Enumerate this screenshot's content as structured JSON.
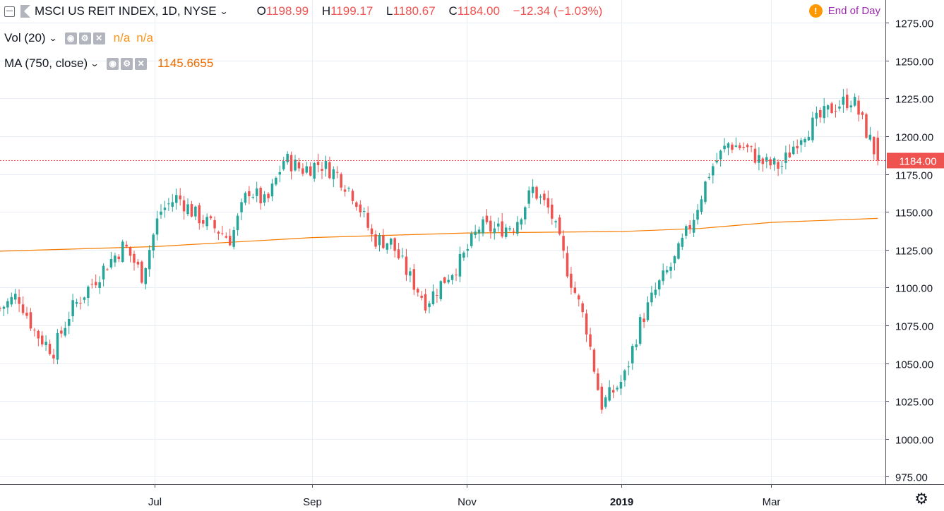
{
  "header": {
    "symbol": "MSCI US REIT INDEX, 1D, NYSE",
    "ohlc": {
      "o_label": "O",
      "o": "1198.99",
      "h_label": "H",
      "h": "1199.17",
      "l_label": "L",
      "l": "1180.67",
      "c_label": "C",
      "c": "1184.00",
      "change": "−12.34 (−1.03%)"
    },
    "end_of_day": "End of Day"
  },
  "indicators": {
    "vol": {
      "label": "Vol (20)",
      "value1": "n/a",
      "value2": "n/a"
    },
    "ma": {
      "label": "MA (750, close)",
      "value": "1145.6655"
    }
  },
  "price_axis": {
    "ticks": [
      "1275.00",
      "1250.00",
      "1225.00",
      "1200.00",
      "1175.00",
      "1150.00",
      "1125.00",
      "1100.00",
      "1075.00",
      "1050.00",
      "1025.00",
      "1000.00",
      "975.00"
    ],
    "last_price_label": "1184.00"
  },
  "time_axis": {
    "ticks": [
      {
        "label": "Jul",
        "date": "2018-07-01",
        "bold": false
      },
      {
        "label": "Sep",
        "date": "2018-09-01",
        "bold": false
      },
      {
        "label": "Nov",
        "date": "2018-11-01",
        "bold": false
      },
      {
        "label": "2019",
        "date": "2019-01-01",
        "bold": true
      },
      {
        "label": "Mar",
        "date": "2019-03-01",
        "bold": false
      }
    ]
  },
  "colors": {
    "up": "#26a69a",
    "down": "#ef5350",
    "ma": "#f57c00",
    "grid": "#e8eef3"
  },
  "chart_data": {
    "type": "candlestick",
    "title": "MSCI US REIT INDEX, 1D, NYSE",
    "x_range": [
      "2018-05-01",
      "2019-04-15"
    ],
    "ylim": [
      970,
      1290
    ],
    "last_price": 1184.0,
    "close_series": [
      {
        "date": "2018-05-01",
        "close": 1086
      },
      {
        "date": "2018-05-08",
        "close": 1095
      },
      {
        "date": "2018-05-15",
        "close": 1070
      },
      {
        "date": "2018-05-22",
        "close": 1058
      },
      {
        "date": "2018-05-29",
        "close": 1085
      },
      {
        "date": "2018-06-05",
        "close": 1100
      },
      {
        "date": "2018-06-12",
        "close": 1115
      },
      {
        "date": "2018-06-19",
        "close": 1128
      },
      {
        "date": "2018-06-26",
        "close": 1108
      },
      {
        "date": "2018-07-03",
        "close": 1150
      },
      {
        "date": "2018-07-10",
        "close": 1160
      },
      {
        "date": "2018-07-17",
        "close": 1148
      },
      {
        "date": "2018-07-24",
        "close": 1140
      },
      {
        "date": "2018-07-31",
        "close": 1132
      },
      {
        "date": "2018-08-07",
        "close": 1165
      },
      {
        "date": "2018-08-14",
        "close": 1155
      },
      {
        "date": "2018-08-21",
        "close": 1185
      },
      {
        "date": "2018-08-28",
        "close": 1178
      },
      {
        "date": "2018-09-04",
        "close": 1182
      },
      {
        "date": "2018-09-11",
        "close": 1175
      },
      {
        "date": "2018-09-18",
        "close": 1160
      },
      {
        "date": "2018-09-25",
        "close": 1132
      },
      {
        "date": "2018-10-02",
        "close": 1130
      },
      {
        "date": "2018-10-09",
        "close": 1108
      },
      {
        "date": "2018-10-16",
        "close": 1090
      },
      {
        "date": "2018-10-23",
        "close": 1105
      },
      {
        "date": "2018-10-30",
        "close": 1118
      },
      {
        "date": "2018-11-06",
        "close": 1140
      },
      {
        "date": "2018-11-13",
        "close": 1138
      },
      {
        "date": "2018-11-20",
        "close": 1142
      },
      {
        "date": "2018-11-27",
        "close": 1165
      },
      {
        "date": "2018-12-04",
        "close": 1150
      },
      {
        "date": "2018-12-11",
        "close": 1110
      },
      {
        "date": "2018-12-18",
        "close": 1075
      },
      {
        "date": "2018-12-24",
        "close": 1022
      },
      {
        "date": "2019-01-02",
        "close": 1040
      },
      {
        "date": "2019-01-08",
        "close": 1075
      },
      {
        "date": "2019-01-15",
        "close": 1100
      },
      {
        "date": "2019-01-22",
        "close": 1118
      },
      {
        "date": "2019-01-29",
        "close": 1145
      },
      {
        "date": "2019-02-05",
        "close": 1178
      },
      {
        "date": "2019-02-12",
        "close": 1195
      },
      {
        "date": "2019-02-19",
        "close": 1192
      },
      {
        "date": "2019-02-26",
        "close": 1182
      },
      {
        "date": "2019-03-05",
        "close": 1180
      },
      {
        "date": "2019-03-12",
        "close": 1200
      },
      {
        "date": "2019-03-19",
        "close": 1210
      },
      {
        "date": "2019-03-26",
        "close": 1220
      },
      {
        "date": "2019-04-02",
        "close": 1225
      },
      {
        "date": "2019-04-09",
        "close": 1197
      },
      {
        "date": "2019-04-12",
        "close": 1184
      }
    ],
    "ma_series": [
      {
        "date": "2018-05-01",
        "value": 1124
      },
      {
        "date": "2018-07-01",
        "value": 1127
      },
      {
        "date": "2018-09-01",
        "value": 1133
      },
      {
        "date": "2018-11-01",
        "value": 1136
      },
      {
        "date": "2019-01-01",
        "value": 1137
      },
      {
        "date": "2019-02-01",
        "value": 1139
      },
      {
        "date": "2019-03-01",
        "value": 1143
      },
      {
        "date": "2019-04-12",
        "value": 1145.67
      }
    ]
  }
}
